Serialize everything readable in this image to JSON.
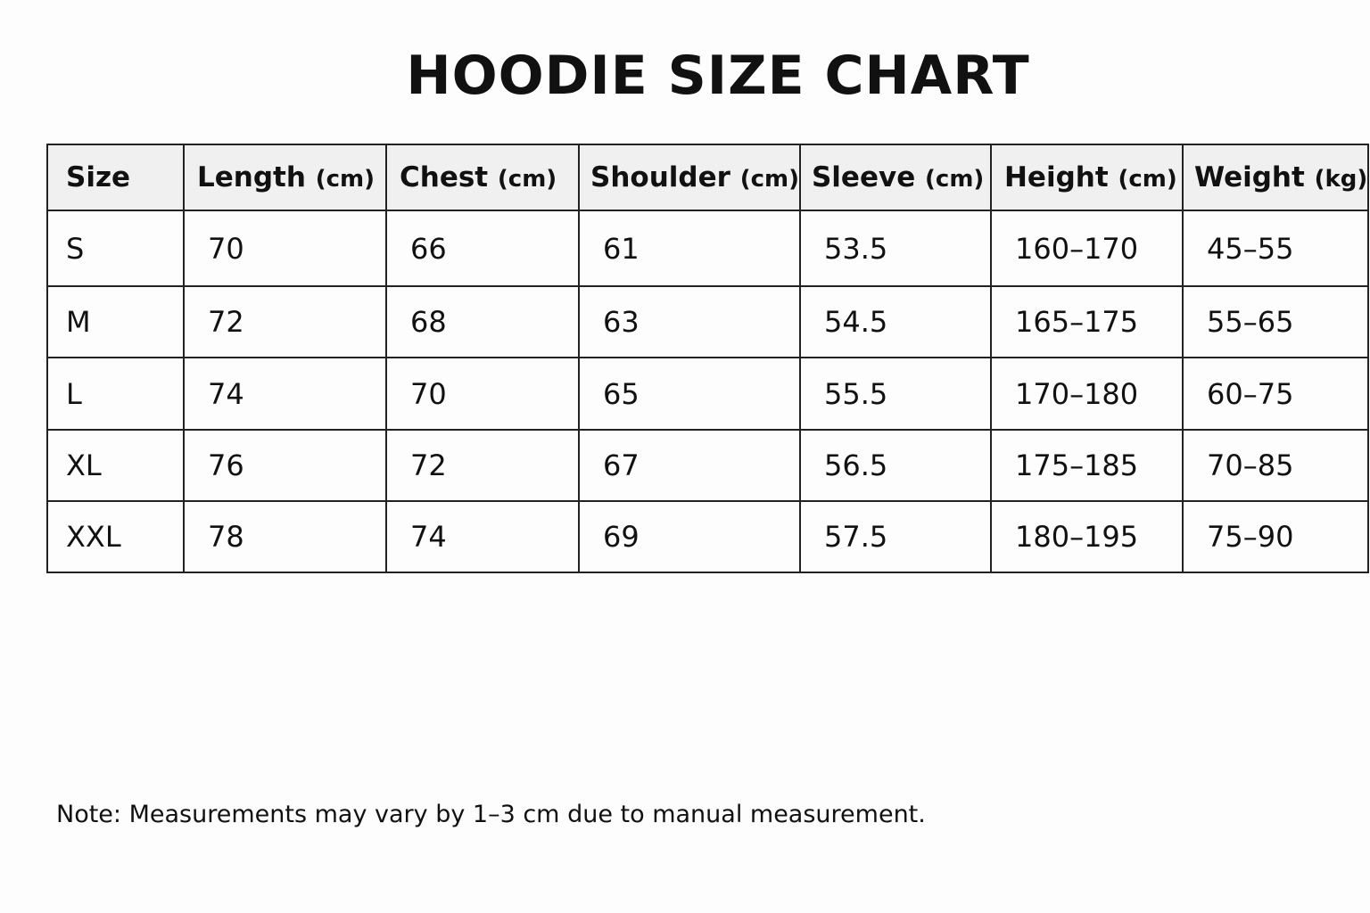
{
  "header": {
    "title": "HOODIE SIZE CHART"
  },
  "table": {
    "columns": [
      {
        "label": "Size"
      },
      {
        "label": "Length",
        "unit": "(cm)"
      },
      {
        "label": "Chest",
        "unit": "(cm)"
      },
      {
        "label": "Shoulder",
        "unit": "(cm)"
      },
      {
        "label": "Sleeve",
        "unit": "(cm)"
      },
      {
        "label": "Height",
        "unit": "(cm)"
      },
      {
        "label": "Weight",
        "unit": "(kg)"
      }
    ],
    "rows": [
      [
        "S",
        70,
        66,
        61,
        53.5,
        "160–170",
        "45–55"
      ],
      [
        "M",
        72,
        68,
        63,
        54.5,
        "165–175",
        "55–65"
      ],
      [
        "L",
        74,
        70,
        65,
        55.5,
        "170–180",
        "60–75"
      ],
      [
        "XL",
        76,
        72,
        67,
        56.5,
        "175–185",
        "70–85"
      ],
      [
        "XXL",
        78,
        74,
        69,
        57.5,
        "180–195",
        "75–90"
      ]
    ]
  },
  "note": "Note: Measurements may vary by 1–3 cm due to manual measurement."
}
